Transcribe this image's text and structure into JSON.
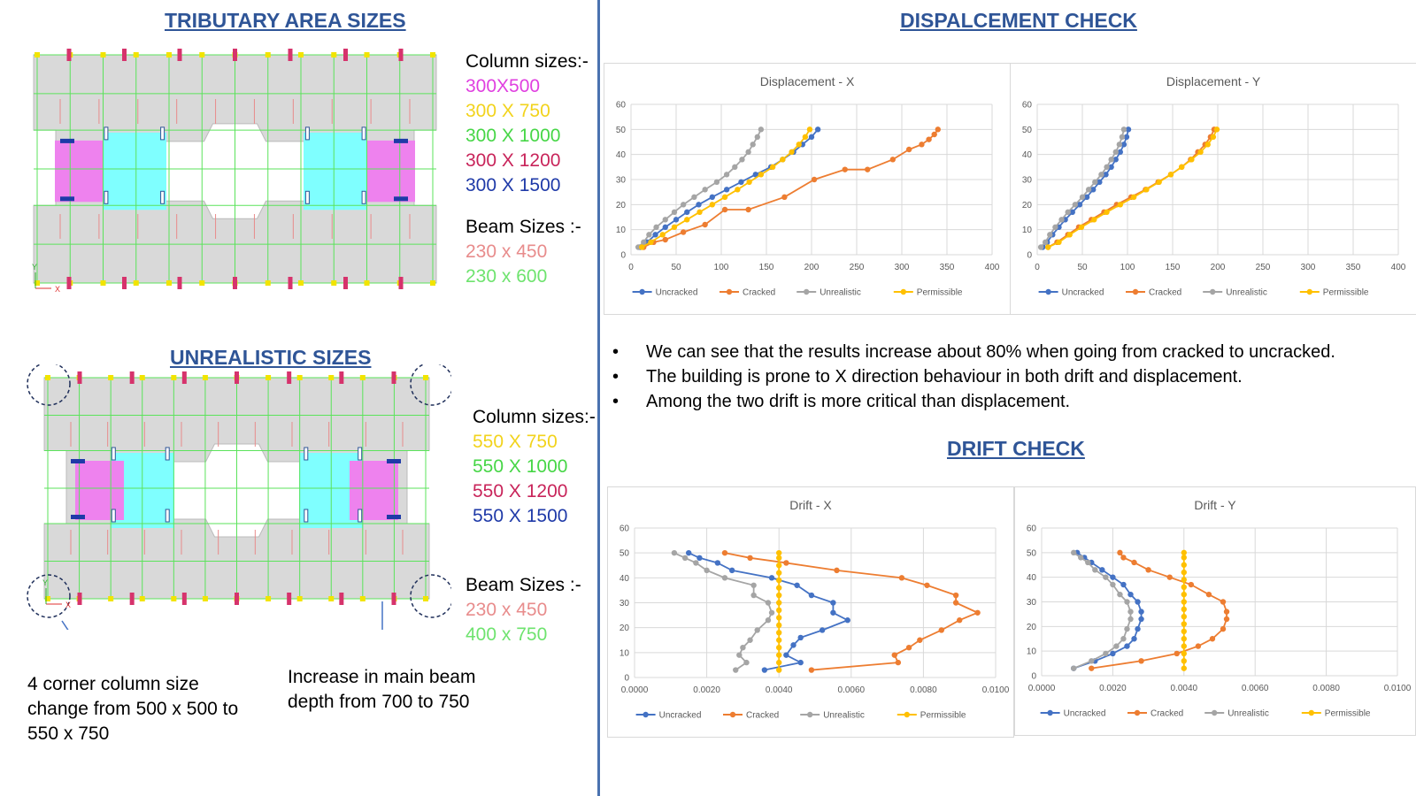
{
  "left": {
    "tributary_heading": "TRIBUTARY AREA SIZES",
    "tributary_columns": {
      "title": "Column sizes:-",
      "items": [
        {
          "label": "300X500",
          "color": "#e040e0"
        },
        {
          "label": "300 X 750",
          "color": "#f2d31c"
        },
        {
          "label": "300 X 1000",
          "color": "#46d646"
        },
        {
          "label": "300 X 1200",
          "color": "#c8245a"
        },
        {
          "label": "300 X 1500",
          "color": "#1f3aa8"
        }
      ]
    },
    "tributary_beams": {
      "title": "Beam Sizes :-",
      "items": [
        {
          "label": "230 x 450",
          "color": "#e88c8c"
        },
        {
          "label": "230 x 600",
          "color": "#6ee36e"
        }
      ]
    },
    "unrealistic_heading": "UNREALISTIC SIZES",
    "unrealistic_columns": {
      "title": "Column sizes:-",
      "items": [
        {
          "label": "550 X 750",
          "color": "#f2d31c"
        },
        {
          "label": "550 X 1000",
          "color": "#46d646"
        },
        {
          "label": "550 X 1200",
          "color": "#c8245a"
        },
        {
          "label": "550 X 1500",
          "color": "#1f3aa8"
        }
      ]
    },
    "unrealistic_beams": {
      "title": "Beam Sizes :-",
      "items": [
        {
          "label": "230 x 450",
          "color": "#e88c8c"
        },
        {
          "label": "400 x 750",
          "color": "#6ee36e"
        }
      ]
    },
    "note_corner": [
      "4 corner column size",
      "change from 500 x 500 to",
      "550 x 750"
    ],
    "note_beam": [
      "Increase in main beam",
      "depth from  700 to 750"
    ],
    "axis_x": "X",
    "axis_y": "Y"
  },
  "right": {
    "displacement_heading": "DISPALCEMENT CHECK",
    "drift_heading": "DRIFT CHECK",
    "bullets": [
      "We can see that the results increase about 80% when going from cracked to uncracked.",
      "The building is prone to X direction behaviour in both drift and displacement.",
      "Among the two drift is more critical than displacement."
    ]
  },
  "series_colors": {
    "Uncracked": "#4472c4",
    "Cracked": "#ed7d31",
    "Unrealistic": "#a5a5a5",
    "Permissible": "#ffc000"
  },
  "chart_data": [
    {
      "type": "line",
      "title": "Displacement - X",
      "xlim": [
        0,
        400
      ],
      "ylim": [
        0,
        60
      ],
      "xticks": [
        "0",
        "50",
        "100",
        "150",
        "200",
        "250",
        "300",
        "350",
        "400"
      ],
      "yticks": [
        "0",
        "10",
        "20",
        "30",
        "40",
        "50",
        "60"
      ],
      "grid": true,
      "legend_position": "bottom",
      "series": [
        {
          "name": "Uncracked",
          "x": [
            10,
            18,
            27,
            38,
            50,
            62,
            75,
            90,
            106,
            122,
            138,
            155,
            168,
            180,
            190,
            200,
            207
          ],
          "y": [
            3,
            5,
            8,
            11,
            14,
            17,
            20,
            23,
            26,
            29,
            32,
            35,
            38,
            41,
            44,
            47,
            50
          ]
        },
        {
          "name": "Cracked",
          "x": [
            14,
            25,
            38,
            58,
            82,
            104,
            130,
            170,
            203,
            237,
            262,
            290,
            308,
            322,
            330,
            336,
            340
          ],
          "y": [
            3,
            5,
            6,
            9,
            12,
            18,
            18,
            23,
            30,
            34,
            34,
            38,
            42,
            44,
            46,
            48,
            50
          ]
        },
        {
          "name": "Unrealistic",
          "x": [
            8,
            14,
            20,
            28,
            38,
            48,
            58,
            70,
            82,
            95,
            106,
            115,
            123,
            130,
            135,
            140,
            144
          ],
          "y": [
            3,
            5,
            8,
            11,
            14,
            17,
            20,
            23,
            26,
            29,
            32,
            35,
            38,
            41,
            44,
            47,
            50
          ]
        },
        {
          "name": "Permissible",
          "x": [
            12,
            22,
            35,
            48,
            62,
            76,
            90,
            104,
            118,
            131,
            144,
            157,
            168,
            178,
            186,
            193,
            198
          ],
          "y": [
            3,
            5,
            8,
            11,
            14,
            17,
            20,
            23,
            26,
            29,
            32,
            35,
            38,
            41,
            44,
            47,
            50
          ]
        }
      ]
    },
    {
      "type": "line",
      "title": "Displacement - Y",
      "xlim": [
        0,
        400
      ],
      "ylim": [
        0,
        60
      ],
      "xticks": [
        "0",
        "50",
        "100",
        "150",
        "200",
        "250",
        "300",
        "350",
        "400"
      ],
      "yticks": [
        "0",
        "10",
        "20",
        "30",
        "40",
        "50",
        "60"
      ],
      "grid": true,
      "legend_position": "bottom",
      "series": [
        {
          "name": "Uncracked",
          "x": [
            6,
            11,
            17,
            24,
            31,
            39,
            47,
            55,
            62,
            69,
            76,
            82,
            87,
            92,
            96,
            99,
            101
          ],
          "y": [
            3,
            5,
            8,
            11,
            14,
            17,
            20,
            23,
            26,
            29,
            32,
            35,
            38,
            41,
            44,
            47,
            50
          ]
        },
        {
          "name": "Cracked",
          "x": [
            12,
            22,
            34,
            46,
            60,
            74,
            88,
            104,
            120,
            134,
            148,
            160,
            170,
            178,
            186,
            192,
            196
          ],
          "y": [
            3,
            5,
            8,
            11,
            14,
            17,
            20,
            23,
            26,
            29,
            32,
            35,
            38,
            41,
            44,
            47,
            50
          ]
        },
        {
          "name": "Unrealistic",
          "x": [
            4,
            9,
            14,
            20,
            27,
            34,
            42,
            50,
            57,
            64,
            71,
            77,
            82,
            87,
            91,
            94,
            96
          ],
          "y": [
            3,
            5,
            8,
            11,
            14,
            17,
            20,
            23,
            26,
            29,
            32,
            35,
            38,
            41,
            44,
            47,
            50
          ]
        },
        {
          "name": "Permissible",
          "x": [
            12,
            24,
            36,
            49,
            63,
            77,
            92,
            107,
            121,
            135,
            148,
            160,
            171,
            181,
            189,
            195,
            199
          ],
          "y": [
            3,
            5,
            8,
            11,
            14,
            17,
            20,
            23,
            26,
            29,
            32,
            35,
            38,
            41,
            44,
            47,
            50
          ]
        }
      ]
    },
    {
      "type": "line",
      "title": "Drift - X",
      "xlim": [
        0,
        0.01
      ],
      "ylim": [
        0,
        60
      ],
      "xticks": [
        "0.0000",
        "0.0020",
        "0.0040",
        "0.0060",
        "0.0080",
        "0.0100"
      ],
      "yticks": [
        "0",
        "10",
        "20",
        "30",
        "40",
        "50",
        "60"
      ],
      "grid": true,
      "legend_position": "bottom",
      "series": [
        {
          "name": "Uncracked",
          "x": [
            0.0036,
            0.0046,
            0.0042,
            0.0044,
            0.0046,
            0.0052,
            0.0059,
            0.0055,
            0.0055,
            0.0049,
            0.0045,
            0.0038,
            0.0027,
            0.0023,
            0.0018,
            0.0015
          ],
          "y": [
            3,
            6,
            9,
            13,
            16,
            19,
            23,
            26,
            30,
            33,
            37,
            40,
            43,
            46,
            48,
            50
          ]
        },
        {
          "name": "Cracked",
          "x": [
            0.0049,
            0.0073,
            0.0072,
            0.0076,
            0.0079,
            0.0085,
            0.009,
            0.0095,
            0.0089,
            0.0089,
            0.0081,
            0.0074,
            0.0056,
            0.0042,
            0.0032,
            0.0025
          ],
          "y": [
            3,
            6,
            9,
            12,
            15,
            19,
            23,
            26,
            30,
            33,
            37,
            40,
            43,
            46,
            48,
            50
          ]
        },
        {
          "name": "Unrealistic",
          "x": [
            0.0028,
            0.0031,
            0.0029,
            0.003,
            0.0032,
            0.0034,
            0.0037,
            0.0038,
            0.0037,
            0.0033,
            0.0033,
            0.0025,
            0.002,
            0.0017,
            0.0014,
            0.0011
          ],
          "y": [
            3,
            6,
            9,
            12,
            15,
            19,
            23,
            26,
            30,
            33,
            37,
            40,
            43,
            46,
            48,
            50
          ]
        },
        {
          "name": "Permissible",
          "x": [
            0.004,
            0.004,
            0.004,
            0.004,
            0.004,
            0.004,
            0.004,
            0.004,
            0.004,
            0.004,
            0.004,
            0.004,
            0.004,
            0.004,
            0.004,
            0.004,
            0.004
          ],
          "y": [
            3,
            6,
            9,
            12,
            15,
            18,
            21,
            24,
            27,
            30,
            33,
            36,
            39,
            42,
            45,
            48,
            50
          ]
        }
      ]
    },
    {
      "type": "line",
      "title": "Drift - Y",
      "xlim": [
        0,
        0.01
      ],
      "ylim": [
        0,
        60
      ],
      "xticks": [
        "0.0000",
        "0.0020",
        "0.0040",
        "0.0060",
        "0.0080",
        "0.0100"
      ],
      "yticks": [
        "0",
        "10",
        "20",
        "30",
        "40",
        "50",
        "60"
      ],
      "grid": true,
      "legend_position": "bottom",
      "series": [
        {
          "name": "Uncracked",
          "x": [
            0.0009,
            0.0015,
            0.002,
            0.0024,
            0.0026,
            0.0027,
            0.0028,
            0.0028,
            0.0027,
            0.0025,
            0.0023,
            0.002,
            0.0017,
            0.0014,
            0.0012,
            0.001
          ],
          "y": [
            3,
            6,
            9,
            12,
            15,
            19,
            23,
            26,
            30,
            33,
            37,
            40,
            43,
            46,
            48,
            50
          ]
        },
        {
          "name": "Cracked",
          "x": [
            0.0014,
            0.0028,
            0.0038,
            0.0044,
            0.0048,
            0.0051,
            0.0052,
            0.0052,
            0.0051,
            0.0047,
            0.0042,
            0.0036,
            0.003,
            0.0026,
            0.0023,
            0.0022
          ],
          "y": [
            3,
            6,
            9,
            12,
            15,
            19,
            23,
            26,
            30,
            33,
            37,
            40,
            43,
            46,
            48,
            50
          ]
        },
        {
          "name": "Unrealistic",
          "x": [
            0.0009,
            0.0014,
            0.0018,
            0.0021,
            0.0023,
            0.0024,
            0.0025,
            0.0025,
            0.0024,
            0.0022,
            0.002,
            0.0018,
            0.0015,
            0.0013,
            0.0011,
            0.0009
          ],
          "y": [
            3,
            6,
            9,
            12,
            15,
            19,
            23,
            26,
            30,
            33,
            37,
            40,
            43,
            46,
            48,
            50
          ]
        },
        {
          "name": "Permissible",
          "x": [
            0.004,
            0.004,
            0.004,
            0.004,
            0.004,
            0.004,
            0.004,
            0.004,
            0.004,
            0.004,
            0.004,
            0.004,
            0.004,
            0.004,
            0.004,
            0.004,
            0.004
          ],
          "y": [
            3,
            6,
            9,
            12,
            15,
            18,
            21,
            24,
            27,
            30,
            33,
            36,
            39,
            42,
            45,
            48,
            50
          ]
        }
      ]
    }
  ]
}
